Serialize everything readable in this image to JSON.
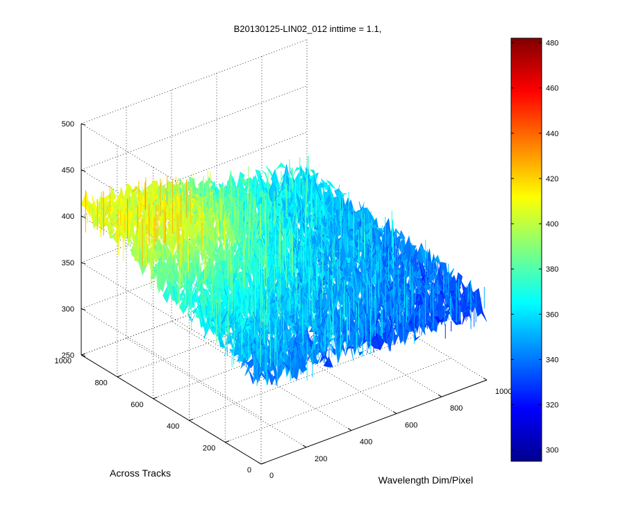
{
  "chart_data": {
    "type": "surface",
    "title": "B20130125-LIN02_012 inttime = 1.1,",
    "xlabel": "Wavelength Dim/Pixel",
    "ylabel": "Across Tracks",
    "zlabel": "",
    "xlim": [
      0,
      1000
    ],
    "ylim": [
      0,
      1000
    ],
    "zlim": [
      250,
      500
    ],
    "x_ticks": [
      "0",
      "200",
      "400",
      "600",
      "800",
      "1000"
    ],
    "y_ticks": [
      "0",
      "200",
      "400",
      "600",
      "800",
      "1000"
    ],
    "z_ticks": [
      "250",
      "300",
      "350",
      "400",
      "450",
      "500"
    ],
    "grid": true,
    "colormap": "jet",
    "colorbar": {
      "ticks": [
        "300",
        "320",
        "340",
        "360",
        "380",
        "400",
        "420",
        "440",
        "460",
        "480"
      ],
      "range": [
        295,
        482
      ]
    },
    "surface_description": "noisy surface; high (~410-440) at low wavelength / high across-track, low (~320-340) at high wavelength / low across-track",
    "corner_levels": {
      "x0_y0": 345,
      "x1000_y0": 330,
      "x0_y1000": 405,
      "x1000_y1000": 355
    },
    "peak": {
      "x": 250,
      "y": 750,
      "z": 440
    }
  }
}
